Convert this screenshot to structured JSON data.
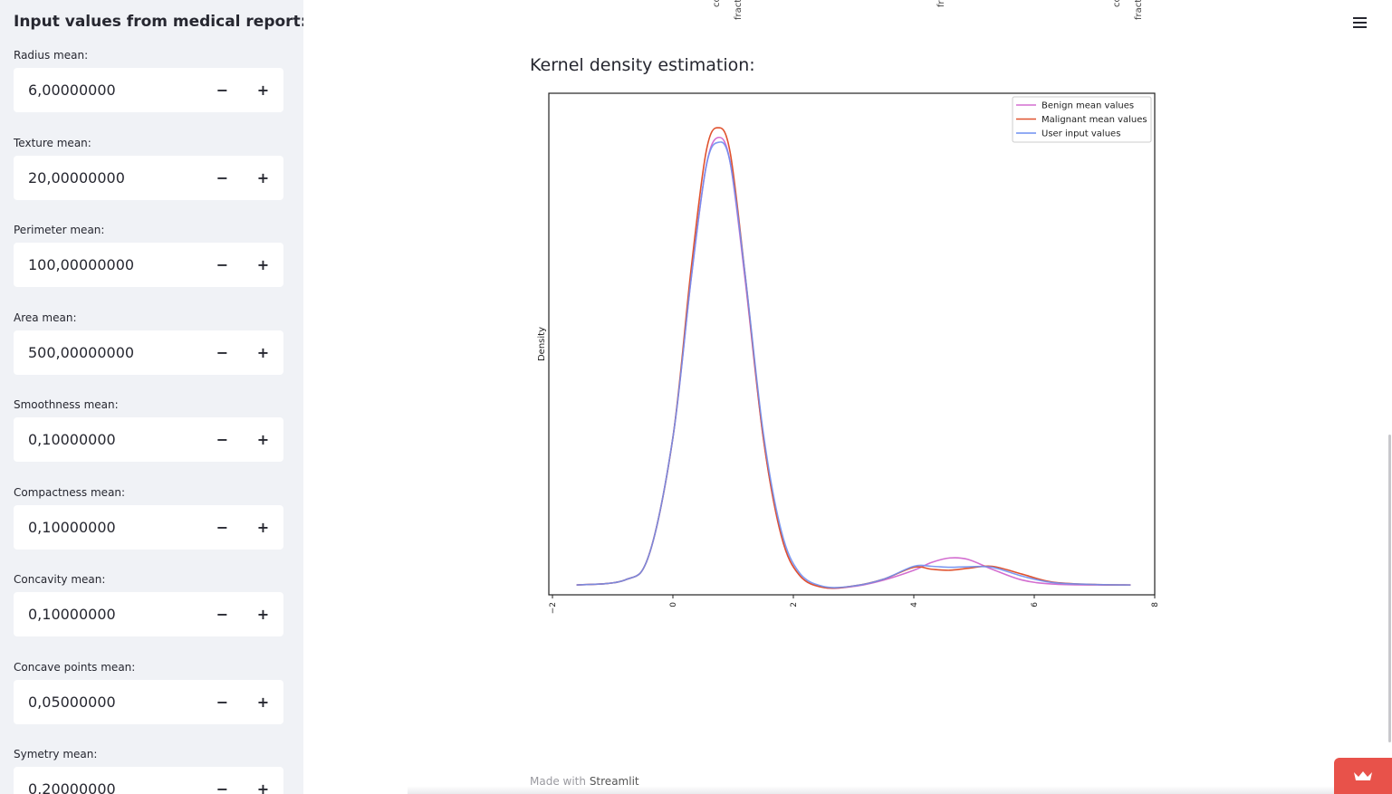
{
  "sidebar": {
    "title": "Input values from medical report:",
    "fields": [
      {
        "label": "Radius mean:",
        "value": "6,00000000"
      },
      {
        "label": "Texture mean:",
        "value": "20,00000000"
      },
      {
        "label": "Perimeter mean:",
        "value": "100,00000000"
      },
      {
        "label": "Area mean:",
        "value": "500,00000000"
      },
      {
        "label": "Smoothness mean:",
        "value": "0,10000000"
      },
      {
        "label": "Compactness mean:",
        "value": "0,10000000"
      },
      {
        "label": "Concavity mean:",
        "value": "0,10000000"
      },
      {
        "label": "Concave points mean:",
        "value": "0,05000000"
      },
      {
        "label": "Symetry mean:",
        "value": "0,20000000"
      }
    ],
    "minus_glyph": "−",
    "plus_glyph": "+"
  },
  "main": {
    "top_fragments": [
      "co",
      "fract",
      "fr",
      "co",
      "fract"
    ],
    "section_title": "Kernel density estimation:",
    "footer_prefix": "Made with",
    "footer_brand": "Streamlit"
  },
  "colors": {
    "benign": "#d36ed0",
    "malignant": "#e0522e",
    "user": "#6f8ff0",
    "sidebar_bg": "#f0f2f6",
    "badge": "#e8524a"
  },
  "chart_data": {
    "type": "line",
    "ylabel": "Density",
    "xlabel": "",
    "xlim": [
      -2,
      8
    ],
    "x_ticks": [
      "−2",
      "0",
      "2",
      "4",
      "6",
      "8"
    ],
    "legend_position": "top-right",
    "series": [
      {
        "name": "Benign mean values",
        "color_key": "benign",
        "x": [
          -1.6,
          -0.8,
          -0.4,
          0,
          0.3,
          0.55,
          0.75,
          0.95,
          1.2,
          1.5,
          1.8,
          2.1,
          2.5,
          3.0,
          3.5,
          4.0,
          4.3,
          4.6,
          4.9,
          5.3,
          5.8,
          6.3,
          7.0,
          7.6
        ],
        "y": [
          0.0,
          0.01,
          0.06,
          0.3,
          0.62,
          0.85,
          0.91,
          0.86,
          0.62,
          0.3,
          0.1,
          0.02,
          -0.005,
          -0.003,
          0.01,
          0.03,
          0.046,
          0.055,
          0.052,
          0.032,
          0.01,
          0.002,
          0.0,
          0.0
        ]
      },
      {
        "name": "Malignant mean values",
        "color_key": "malignant",
        "x": [
          -1.6,
          -0.8,
          -0.4,
          0,
          0.3,
          0.55,
          0.75,
          0.95,
          1.2,
          1.5,
          1.8,
          2.1,
          2.5,
          3.0,
          3.5,
          4.0,
          4.3,
          4.6,
          4.9,
          5.3,
          5.8,
          6.3,
          7.0,
          7.6
        ],
        "y": [
          0.0,
          0.01,
          0.06,
          0.3,
          0.64,
          0.88,
          0.93,
          0.88,
          0.63,
          0.3,
          0.1,
          0.02,
          -0.005,
          -0.002,
          0.012,
          0.036,
          0.032,
          0.03,
          0.034,
          0.038,
          0.022,
          0.006,
          0.001,
          0.0
        ]
      },
      {
        "name": "User input values",
        "color_key": "user",
        "x": [
          -1.6,
          -0.8,
          -0.4,
          0,
          0.3,
          0.55,
          0.75,
          0.95,
          1.2,
          1.5,
          1.8,
          2.1,
          2.5,
          3.0,
          3.5,
          4.0,
          4.3,
          4.6,
          4.9,
          5.3,
          5.8,
          6.3,
          7.0,
          7.6
        ],
        "y": [
          0.0,
          0.01,
          0.06,
          0.3,
          0.62,
          0.85,
          0.9,
          0.86,
          0.63,
          0.31,
          0.11,
          0.025,
          -0.003,
          -0.002,
          0.012,
          0.038,
          0.038,
          0.036,
          0.037,
          0.036,
          0.018,
          0.005,
          0.001,
          0.0
        ]
      }
    ]
  }
}
